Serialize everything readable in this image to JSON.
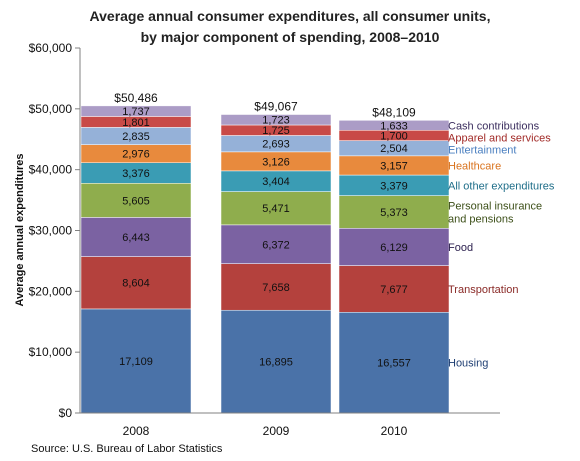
{
  "chart_data": {
    "type": "bar",
    "stacked": true,
    "title_line1": "Average annual consumer expenditures, all consumer units,",
    "title_line2": "by major component of spending, 2008–2010",
    "xlabel": "",
    "ylabel": "Average annual expenditures",
    "ylim": [
      0,
      60000
    ],
    "yticks": [
      0,
      10000,
      20000,
      30000,
      40000,
      50000,
      60000
    ],
    "ytick_labels": [
      "$0",
      "$10,000",
      "$20,000",
      "$30,000",
      "$40,000",
      "$50,000",
      "$60,000"
    ],
    "categories": [
      "2008",
      "2009",
      "2010"
    ],
    "totals": [
      50486,
      49067,
      48109
    ],
    "total_labels": [
      "$50,486",
      "$49,067",
      "$48,109"
    ],
    "grid": false,
    "legend_position": "right, aligned with segments",
    "series": [
      {
        "name": "Housing",
        "values": [
          17109,
          16895,
          16557
        ],
        "labels": [
          "17,109",
          "16,895",
          "16,557"
        ],
        "color": "#4a72a8",
        "legend_lines": [
          "Housing"
        ],
        "legend_color": "#1f3f73"
      },
      {
        "name": "Transportation",
        "values": [
          8604,
          7658,
          7677
        ],
        "labels": [
          "8,604",
          "7,658",
          "7,677"
        ],
        "color": "#b4413d",
        "legend_lines": [
          "Transportation"
        ],
        "legend_color": "#8a2a27"
      },
      {
        "name": "Food",
        "values": [
          6443,
          6372,
          6129
        ],
        "labels": [
          "6,443",
          "6,372",
          "6,129"
        ],
        "color": "#7b62a2",
        "legend_lines": [
          "Food"
        ],
        "legend_color": "#2e2250"
      },
      {
        "name": "Personal insurance and pensions",
        "values": [
          5605,
          5471,
          5373
        ],
        "labels": [
          "5,605",
          "5,471",
          "5,373"
        ],
        "color": "#8fad4d",
        "legend_lines": [
          "Personal insurance",
          "and pensions"
        ],
        "legend_color": "#3c4f18"
      },
      {
        "name": "All other expenditures",
        "values": [
          3376,
          3404,
          3379
        ],
        "labels": [
          "3,376",
          "3,404",
          "3,379"
        ],
        "color": "#3a9cb4",
        "legend_lines": [
          "All other expenditures"
        ],
        "legend_color": "#1f6e89"
      },
      {
        "name": "Healthcare",
        "values": [
          2976,
          3126,
          3157
        ],
        "labels": [
          "2,976",
          "3,126",
          "3,157"
        ],
        "color": "#e88a3d",
        "legend_lines": [
          "Healthcare"
        ],
        "legend_color": "#d9731e"
      },
      {
        "name": "Entertainment",
        "values": [
          2835,
          2693,
          2504
        ],
        "labels": [
          "2,835",
          "2,693",
          "2,504"
        ],
        "color": "#95b1d8",
        "legend_lines": [
          "Entertainment"
        ],
        "legend_color": "#4a7fc0"
      },
      {
        "name": "Apparel and services",
        "values": [
          1801,
          1725,
          1700
        ],
        "labels": [
          "1,801",
          "1,725",
          "1,700"
        ],
        "color": "#c84a47",
        "legend_lines": [
          "Apparel and services"
        ],
        "legend_color": "#a22b28"
      },
      {
        "name": "Cash contributions",
        "values": [
          1737,
          1723,
          1633
        ],
        "labels": [
          "1,737",
          "1,723",
          "1,633"
        ],
        "color": "#ab9cc6",
        "legend_lines": [
          "Cash contributions"
        ],
        "legend_color": "#3b2e5e"
      }
    ],
    "source": "Source: U.S. Bureau of Labor Statistics"
  }
}
